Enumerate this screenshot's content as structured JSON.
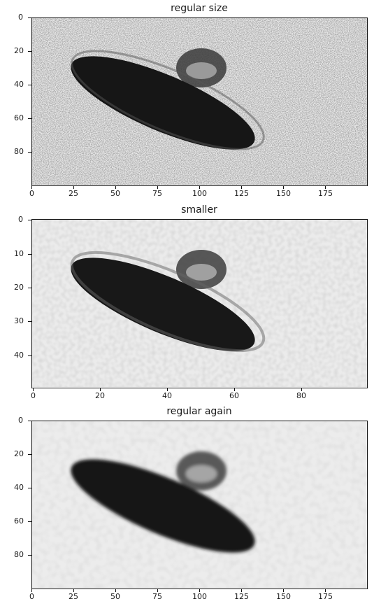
{
  "panels": [
    {
      "title": "regular size",
      "image": "ufo-saucer-photo",
      "xticks": [
        "0",
        "25",
        "50",
        "75",
        "100",
        "125",
        "150",
        "175"
      ],
      "yticks": [
        "0",
        "20",
        "40",
        "60",
        "80"
      ]
    },
    {
      "title": "smaller",
      "image": "ufo-saucer-photo",
      "xticks": [
        "0",
        "20",
        "40",
        "60",
        "80"
      ],
      "yticks": [
        "0",
        "10",
        "20",
        "30",
        "40"
      ]
    },
    {
      "title": "regular again",
      "image": "ufo-saucer-photo",
      "xticks": [
        "0",
        "25",
        "50",
        "75",
        "100",
        "125",
        "150",
        "175"
      ],
      "yticks": [
        "0",
        "20",
        "40",
        "60",
        "80"
      ]
    }
  ],
  "colors": {
    "saucer": "#141414",
    "background": "#ececec",
    "frame": "#111111"
  }
}
